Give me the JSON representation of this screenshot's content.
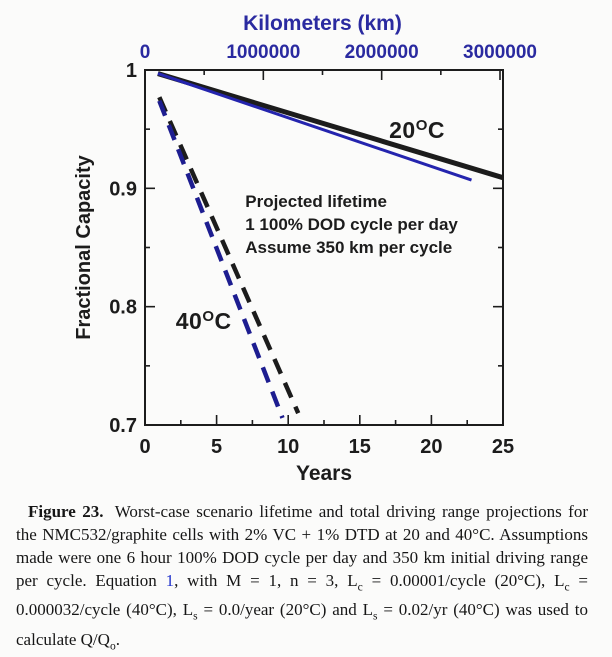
{
  "colors": {
    "axis_blue": "#2a2aa0",
    "line_blue_solid": "#2424ae",
    "line_blue_dashed": "#1d1d90",
    "black": "#1c1c1c",
    "link_blue": "#2233cc",
    "background": "#fbfbfa"
  },
  "chart_data": {
    "type": "line",
    "xlabel": "Years",
    "x2label": "Kilometers (km)",
    "ylabel": "Fractional Capacity",
    "xlim": [
      0,
      25
    ],
    "x2lim": [
      0,
      3000000
    ],
    "ylim": [
      0.7,
      1.0
    ],
    "x_ticks": [
      0,
      5,
      10,
      15,
      20,
      25
    ],
    "x_minor_step": 2.5,
    "x2_ticks": [
      0,
      1000000,
      2000000,
      3000000
    ],
    "x2_tick_labels": [
      "0",
      "1000000",
      "2000000",
      "3000000"
    ],
    "x2_minor_step": 500000,
    "y_ticks": [
      1,
      0.9,
      0.8,
      0.7
    ],
    "y_tick_labels": [
      "1",
      "0.9",
      "0.8",
      "0.7"
    ],
    "y_minor_step": 0.05,
    "grid": false,
    "legend": "none",
    "series": [
      {
        "name": "20C-black-solid",
        "temperature": "20C",
        "color": "#1c1c1c",
        "dash": "solid",
        "width": 5,
        "points": [
          [
            0.9,
            0.997
          ],
          [
            25.0,
            0.909
          ]
        ]
      },
      {
        "name": "20C-blue-solid",
        "temperature": "20C",
        "color": "#2424ae",
        "dash": "solid",
        "width": 3,
        "points": [
          [
            0.9,
            0.997
          ],
          [
            22.8,
            0.907
          ]
        ]
      },
      {
        "name": "40C-black-dashed",
        "temperature": "40C",
        "color": "#1c1c1c",
        "dash": "dashed",
        "width": 4.5,
        "points": [
          [
            1.0,
            0.977
          ],
          [
            10.7,
            0.71
          ]
        ]
      },
      {
        "name": "40C-blue-dashed",
        "temperature": "40C",
        "color": "#1d1d90",
        "dash": "dashed",
        "width": 4.5,
        "points": [
          [
            1.0,
            0.974
          ],
          [
            9.6,
            0.706
          ]
        ]
      }
    ],
    "annotations": {
      "label_20": {
        "pre": "20",
        "sup": "O",
        "post": "C",
        "x": 19.0,
        "y": 0.949
      },
      "label_40": {
        "pre": "40",
        "sup": "O",
        "post": "C",
        "x": 4.1,
        "y": 0.788
      },
      "note": {
        "lines": [
          "Projected lifetime",
          "1 100% DOD cycle per day",
          "Assume 350 km per cycle"
        ],
        "x": 7.0,
        "y": 0.899
      }
    }
  },
  "caption": {
    "label": "Figure 23.",
    "s1": " Worst-case scenario lifetime and total driving range projections for the NMC532/graphite cells with 2% VC + 1% DTD at 20 and 40°C. Assumptions made were one 6 hour 100% DOD cycle per day and 350 km initial driving range per cycle. Equation ",
    "eq1": "1",
    "s2": ", with M = 1, n = 3, L",
    "sub_c": "c",
    "s3": " = 0.00001/cycle (20°C), L",
    "s4": " = 0.000032/cycle (40°C), L",
    "sub_s": "s",
    "s5": " = 0.0/year (20°C) and L",
    "s6": " = 0.02/yr (40°C) was used to calculate Q/Q",
    "sub_o": "o",
    "s7": "."
  }
}
